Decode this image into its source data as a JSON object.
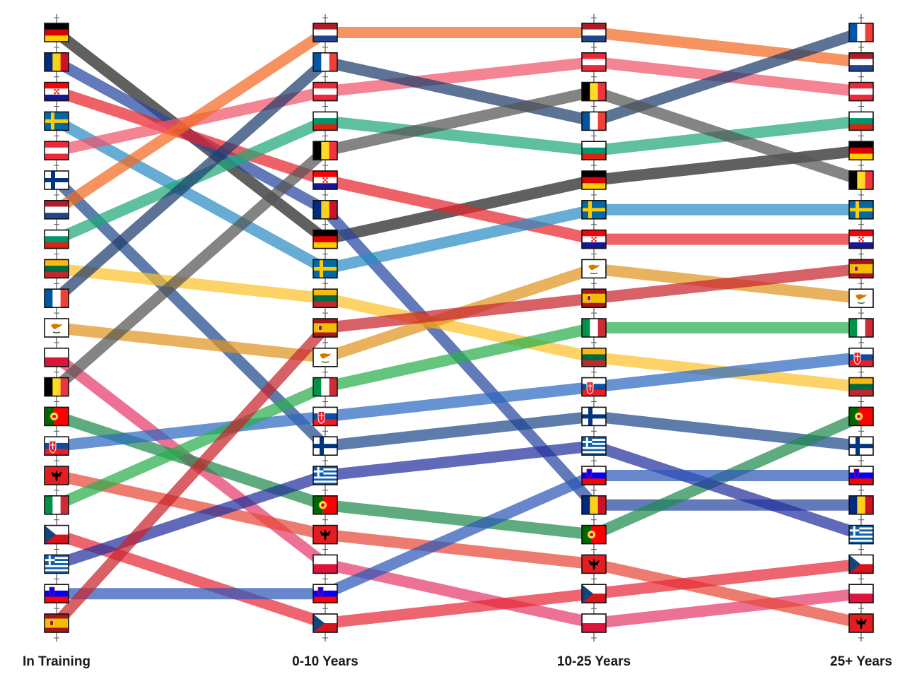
{
  "chart_data": {
    "type": "bump",
    "title": "",
    "categories": [
      "In Training",
      "0-10 Years",
      "10-25 Years",
      "25+ Years"
    ],
    "rank_direction": "1 = top",
    "legend": "none",
    "grid": false,
    "series": [
      {
        "flag": "germany",
        "color": "#222222",
        "ranks": [
          1,
          8,
          6,
          5
        ]
      },
      {
        "flag": "romania",
        "color": "#2747a0",
        "ranks": [
          2,
          7,
          17,
          17
        ]
      },
      {
        "flag": "croatia",
        "color": "#e8242c",
        "ranks": [
          3,
          6,
          8,
          8
        ]
      },
      {
        "flag": "sweden",
        "color": "#2b8cc4",
        "ranks": [
          4,
          9,
          7,
          7
        ]
      },
      {
        "flag": "austria",
        "color": "#f05468",
        "ranks": [
          5,
          3,
          2,
          3
        ]
      },
      {
        "flag": "finland",
        "color": "#1f4a8c",
        "ranks": [
          6,
          15,
          14,
          15
        ]
      },
      {
        "flag": "netherlands",
        "color": "#f26a22",
        "ranks": [
          7,
          1,
          1,
          2
        ]
      },
      {
        "flag": "bulgaria",
        "color": "#20a878",
        "ranks": [
          8,
          4,
          5,
          4
        ]
      },
      {
        "flag": "lithuania",
        "color": "#fcc22d",
        "ranks": [
          9,
          10,
          12,
          13
        ]
      },
      {
        "flag": "france",
        "color": "#1f3d6e",
        "ranks": [
          10,
          2,
          4,
          1
        ]
      },
      {
        "flag": "cyprus",
        "color": "#df9420",
        "ranks": [
          11,
          12,
          9,
          10
        ]
      },
      {
        "flag": "poland",
        "color": "#e43a6c",
        "ranks": [
          12,
          19,
          21,
          20
        ]
      },
      {
        "flag": "belgium",
        "color": "#555555",
        "ranks": [
          13,
          5,
          3,
          6
        ]
      },
      {
        "flag": "portugal",
        "color": "#1f8a4c",
        "ranks": [
          14,
          17,
          18,
          14
        ]
      },
      {
        "flag": "slovakia",
        "color": "#2d6ac0",
        "ranks": [
          15,
          14,
          13,
          12
        ]
      },
      {
        "flag": "albania",
        "color": "#e84838",
        "ranks": [
          16,
          18,
          19,
          21
        ]
      },
      {
        "flag": "italy",
        "color": "#2aae4e",
        "ranks": [
          17,
          13,
          11,
          11
        ]
      },
      {
        "flag": "czechia",
        "color": "#e82838",
        "ranks": [
          18,
          21,
          20,
          19
        ]
      },
      {
        "flag": "greece",
        "color": "#23309e",
        "ranks": [
          19,
          16,
          15,
          18
        ]
      },
      {
        "flag": "slovenia",
        "color": "#2d58b8",
        "ranks": [
          20,
          20,
          16,
          16
        ]
      },
      {
        "flag": "spain",
        "color": "#c8242c",
        "ranks": [
          21,
          11,
          10,
          9
        ]
      }
    ]
  }
}
